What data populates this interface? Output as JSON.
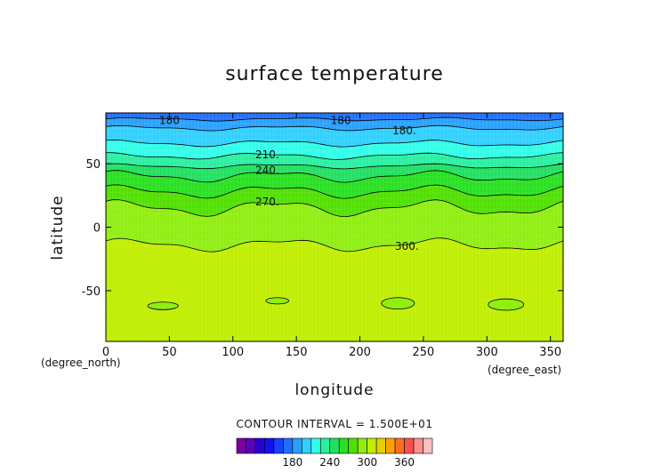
{
  "chart_data": {
    "type": "contour",
    "title": "surface temperature",
    "xlabel": "longitude",
    "ylabel": "latitude",
    "x_unit": "(degree_east)",
    "y_unit": "(degree_north)",
    "xlim": [
      0,
      360
    ],
    "ylim": [
      -90,
      90
    ],
    "x_ticks": [
      0,
      50,
      100,
      150,
      200,
      250,
      300,
      350
    ],
    "y_ticks": [
      -50,
      0,
      50
    ],
    "contour_interval_text": "CONTOUR INTERVAL = 1.500E+01",
    "contour_interval": 15,
    "contour_labels": [
      {
        "text": "180",
        "lon": 50,
        "lat": 84
      },
      {
        "text": "180",
        "lon": 185,
        "lat": 84
      },
      {
        "text": "180.",
        "lon": 235,
        "lat": 76
      },
      {
        "text": "210.",
        "lon": 127,
        "lat": 57
      },
      {
        "text": "240.",
        "lon": 127,
        "lat": 45
      },
      {
        "text": "270.",
        "lon": 127,
        "lat": 20
      },
      {
        "text": "300.",
        "lon": 237,
        "lat": -15
      }
    ],
    "bands_by_latitude": [
      {
        "lat": 90,
        "value": 165
      },
      {
        "lat": 80,
        "value": 180
      },
      {
        "lat": 70,
        "value": 195
      },
      {
        "lat": 60,
        "value": 210
      },
      {
        "lat": 50,
        "value": 225
      },
      {
        "lat": 45,
        "value": 240
      },
      {
        "lat": 35,
        "value": 255
      },
      {
        "lat": 20,
        "value": 270
      },
      {
        "lat": 0,
        "value": 285
      },
      {
        "lat": -20,
        "value": 300
      },
      {
        "lat": -90,
        "value": 300
      }
    ],
    "colorbar": {
      "levels": [
        105,
        120,
        135,
        150,
        165,
        180,
        195,
        210,
        225,
        240,
        255,
        270,
        285,
        300,
        315,
        330,
        345,
        360,
        375,
        390
      ],
      "colors": [
        "#7a00a0",
        "#5a00c0",
        "#2a00d8",
        "#1010f0",
        "#1840ff",
        "#2070ff",
        "#28a0ff",
        "#30d0ff",
        "#30ffe8",
        "#28f0a0",
        "#20e060",
        "#28e020",
        "#50e000",
        "#90ee10",
        "#c0ee00",
        "#e8d000",
        "#ffa000",
        "#ff7020",
        "#ff5050",
        "#ff9090",
        "#ffc0c0"
      ],
      "tick_labels": [
        "180",
        "240",
        "300",
        "360"
      ],
      "tick_values": [
        180,
        240,
        300,
        360
      ]
    }
  }
}
